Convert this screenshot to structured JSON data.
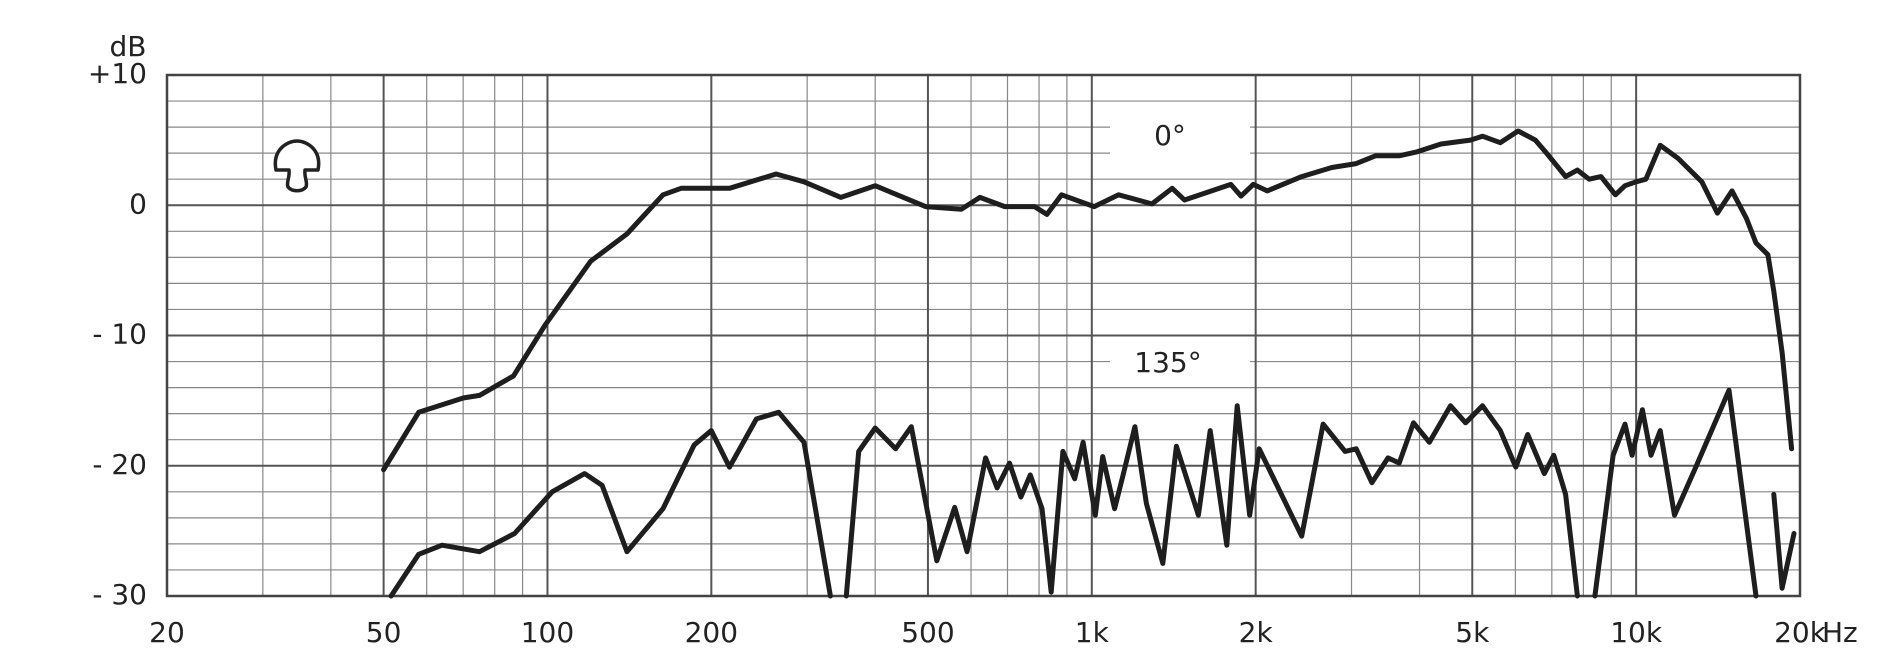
{
  "chart_data": {
    "type": "line",
    "xlabel": "Hz",
    "ylabel": "dB",
    "xscale": "log",
    "xlim": [
      20,
      20000
    ],
    "ylim": [
      -30,
      10
    ],
    "xticks": [
      20,
      50,
      100,
      200,
      500,
      {
        "value": 1000,
        "label": "1k"
      },
      {
        "value": 2000,
        "label": "2k"
      },
      {
        "value": 5000,
        "label": "5k"
      },
      {
        "value": 10000,
        "label": "10k"
      },
      {
        "value": 20000,
        "label": "20k"
      }
    ],
    "yticks": [
      {
        "value": 10,
        "label": "+10"
      },
      0,
      {
        "value": -10,
        "label": "- 10"
      },
      {
        "value": -20,
        "label": "- 20"
      },
      {
        "value": -30,
        "label": "- 30"
      }
    ],
    "grid": true,
    "series": [
      {
        "name": "0°",
        "color": "#1e1e1e",
        "x": [
          50,
          58,
          70,
          75,
          86.6,
          99,
          120,
          140,
          163,
          176,
          216,
          263,
          296,
          346,
          400,
          495,
          576,
          623,
          692,
          785,
          827,
          880,
          1010,
          1120,
          1290,
          1405,
          1480,
          1660,
          1800,
          1880,
          1980,
          2100,
          2430,
          2760,
          3060,
          3320,
          3670,
          3960,
          4380,
          4960,
          5220,
          5630,
          6070,
          6530,
          6880,
          7420,
          7800,
          8200,
          8620,
          9160,
          9540,
          10000,
          10420,
          11070,
          11940,
          13200,
          14100,
          15000,
          15940,
          16600,
          17460,
          17900,
          18540,
          19300
        ],
        "values": [
          -20.3,
          -15.9,
          -14.8,
          -14.6,
          -13.1,
          -9.2,
          -4.3,
          -2.2,
          0.8,
          1.3,
          1.3,
          2.4,
          1.8,
          0.6,
          1.5,
          -0.1,
          -0.3,
          0.6,
          -0.1,
          -0.1,
          -0.7,
          0.8,
          -0.1,
          0.8,
          0.1,
          1.3,
          0.4,
          1.1,
          1.6,
          0.7,
          1.6,
          1.1,
          2.2,
          2.9,
          3.2,
          3.8,
          3.8,
          4.1,
          4.7,
          5.0,
          5.3,
          4.8,
          5.7,
          5.0,
          3.9,
          2.2,
          2.7,
          2.0,
          2.2,
          0.8,
          1.5,
          1.8,
          2.0,
          4.6,
          3.6,
          1.8,
          -0.6,
          1.1,
          -1.0,
          -2.9,
          -3.8,
          -6.6,
          -11.3,
          -18.7
        ]
      },
      {
        "name": "135°",
        "color": "#1e1e1e",
        "x": [
          51.6,
          58,
          64,
          75,
          87,
          102,
          117,
          126,
          140,
          163,
          186,
          200,
          216,
          242,
          266,
          296,
          331,
          342,
          354,
          373,
          400,
          436,
          466,
          519,
          560,
          590,
          638,
          670,
          706,
          741,
          771,
          810,
          842,
          885,
          930,
          964,
          1015,
          1047,
          1101,
          1140,
          1200,
          1260,
          1350,
          1430,
          1570,
          1650,
          1770,
          1850,
          1950,
          2030,
          2430,
          2660,
          2920,
          3060,
          3270,
          3500,
          3670,
          3900,
          4170,
          4560,
          4860,
          5220,
          5630,
          6010,
          6320,
          6780,
          7060,
          7420,
          7800,
          8100,
          8400,
          9070,
          9540,
          9830,
          10270,
          10650,
          11070,
          11760,
          12870,
          14230,
          14810,
          16600,
          17200,
          17900,
          18540,
          19500
        ],
        "values": [
          -30,
          -26.8,
          -26.1,
          -26.6,
          -25.2,
          -22.0,
          -20.6,
          -21.5,
          -26.6,
          -23.3,
          -18.4,
          -17.3,
          -20.1,
          -16.4,
          -15.9,
          -18.2,
          -30,
          null,
          -30,
          -18.9,
          -17.1,
          -18.7,
          -17.0,
          -27.3,
          -23.2,
          -26.6,
          -19.4,
          -21.7,
          -19.8,
          -22.4,
          -20.7,
          -23.3,
          -29.7,
          -18.9,
          -21.0,
          -18.2,
          -23.8,
          -19.3,
          -23.3,
          -20.8,
          -17.0,
          -22.9,
          -27.5,
          -18.5,
          -23.8,
          -17.3,
          -26.1,
          -15.4,
          -23.8,
          -18.7,
          -25.4,
          -16.8,
          -18.9,
          -18.7,
          -21.3,
          -19.4,
          -19.8,
          -16.7,
          -18.2,
          -15.4,
          -16.7,
          -15.4,
          -17.3,
          -20.1,
          -17.6,
          -20.6,
          -19.2,
          -22.2,
          -30,
          null,
          -30,
          -19.2,
          -16.8,
          -19.2,
          -15.7,
          -19.2,
          -17.3,
          -23.8,
          -20.1,
          -15.9,
          -14.2,
          -30,
          null,
          -22.2,
          -29.4,
          -25.2
        ]
      }
    ]
  }
}
